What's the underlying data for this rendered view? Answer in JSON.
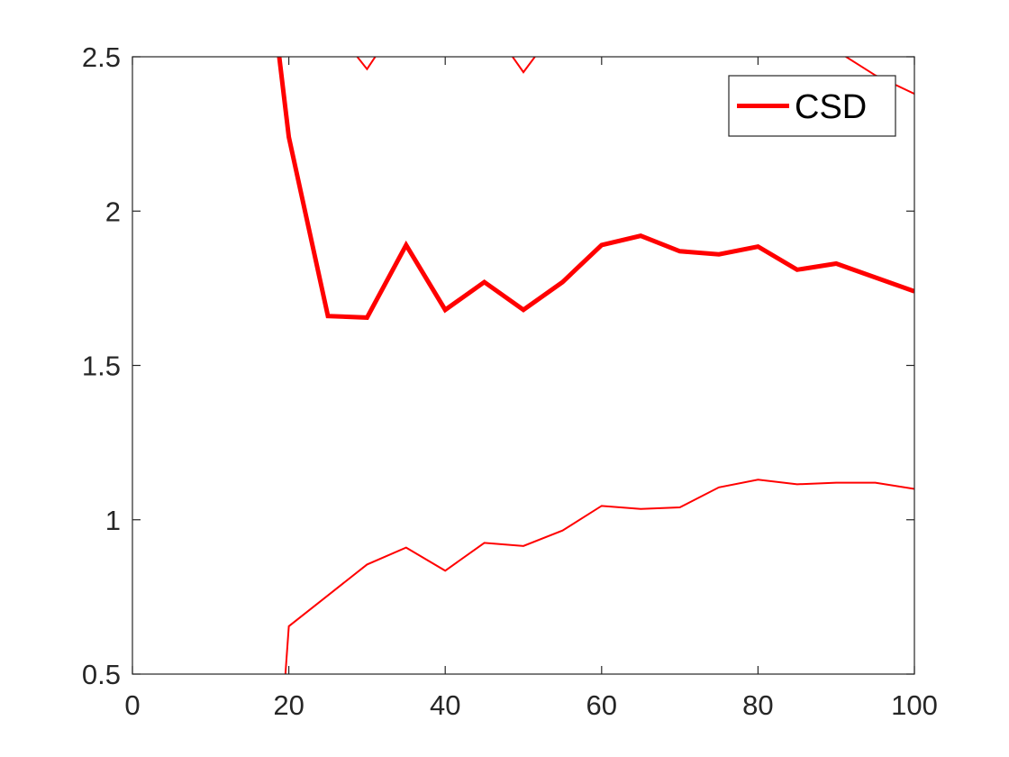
{
  "chart_data": {
    "type": "line",
    "title": "",
    "xlabel": "",
    "ylabel": "",
    "xlim": [
      0,
      100
    ],
    "ylim": [
      0.5,
      2.5
    ],
    "x_ticks": [
      0,
      20,
      40,
      60,
      80,
      100
    ],
    "y_ticks": [
      0.5,
      1,
      1.5,
      2,
      2.5
    ],
    "x_tick_labels": [
      "0",
      "20",
      "40",
      "60",
      "80",
      "100"
    ],
    "y_tick_labels": [
      "0.5",
      "1",
      "1.5",
      "2",
      "2.5"
    ],
    "grid": false,
    "legend": {
      "placement": "top-right",
      "entries": [
        "CSD"
      ]
    },
    "series": [
      {
        "name": "CSD",
        "role": "mean",
        "color": "#ff0000",
        "width": "thick",
        "x": [
          15,
          20,
          25,
          30,
          35,
          40,
          45,
          50,
          55,
          60,
          65,
          70,
          75,
          80,
          85,
          90,
          95,
          100
        ],
        "values": [
          3.3,
          2.24,
          1.66,
          1.655,
          1.89,
          1.68,
          1.77,
          1.68,
          1.77,
          1.89,
          1.92,
          1.87,
          1.86,
          1.885,
          1.81,
          1.83,
          1.785,
          1.74
        ]
      },
      {
        "role": "lower bound",
        "color": "#ff0000",
        "width": "thin",
        "x": [
          19,
          20,
          25,
          30,
          35,
          40,
          45,
          50,
          55,
          60,
          65,
          70,
          75,
          80,
          85,
          90,
          95,
          100
        ],
        "values": [
          0.3,
          0.655,
          0.755,
          0.855,
          0.91,
          0.835,
          0.925,
          0.915,
          0.965,
          1.045,
          1.035,
          1.04,
          1.105,
          1.13,
          1.115,
          1.12,
          1.12,
          1.1
        ]
      },
      {
        "role": "upper bound",
        "color": "#ff0000",
        "width": "thin",
        "x": [
          25,
          30,
          35,
          45,
          50,
          55,
          85,
          90,
          95,
          100
        ],
        "values": [
          2.62,
          2.46,
          2.65,
          2.63,
          2.45,
          2.62,
          2.65,
          2.52,
          2.44,
          2.38
        ]
      }
    ]
  }
}
